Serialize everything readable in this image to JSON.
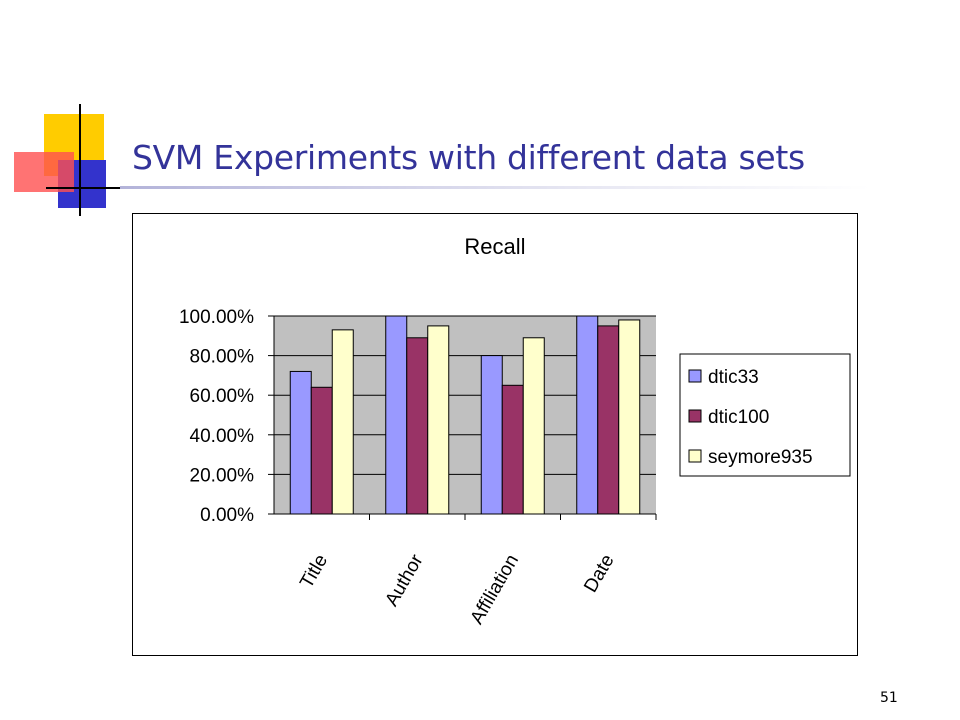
{
  "slide": {
    "title": "SVM Experiments with different data sets",
    "page_number": "51"
  },
  "chart_data": {
    "type": "bar",
    "title": "Recall",
    "categories": [
      "Title",
      "Author",
      "Affiliation",
      "Date"
    ],
    "series": [
      {
        "name": "dtic33",
        "values": [
          0.72,
          1.0,
          0.8,
          1.0
        ],
        "color": "#9999ff"
      },
      {
        "name": "dtic100",
        "values": [
          0.64,
          0.89,
          0.65,
          0.95
        ],
        "color": "#993366"
      },
      {
        "name": "seymore935",
        "values": [
          0.93,
          0.95,
          0.89,
          0.98
        ],
        "color": "#ffffcc"
      }
    ],
    "y_ticks": [
      "0.00%",
      "20.00%",
      "40.00%",
      "60.00%",
      "80.00%",
      "100.00%"
    ],
    "ylim": [
      0,
      1
    ],
    "grid": true,
    "plot_background": "#c0c0c0",
    "legend_position": "right"
  }
}
